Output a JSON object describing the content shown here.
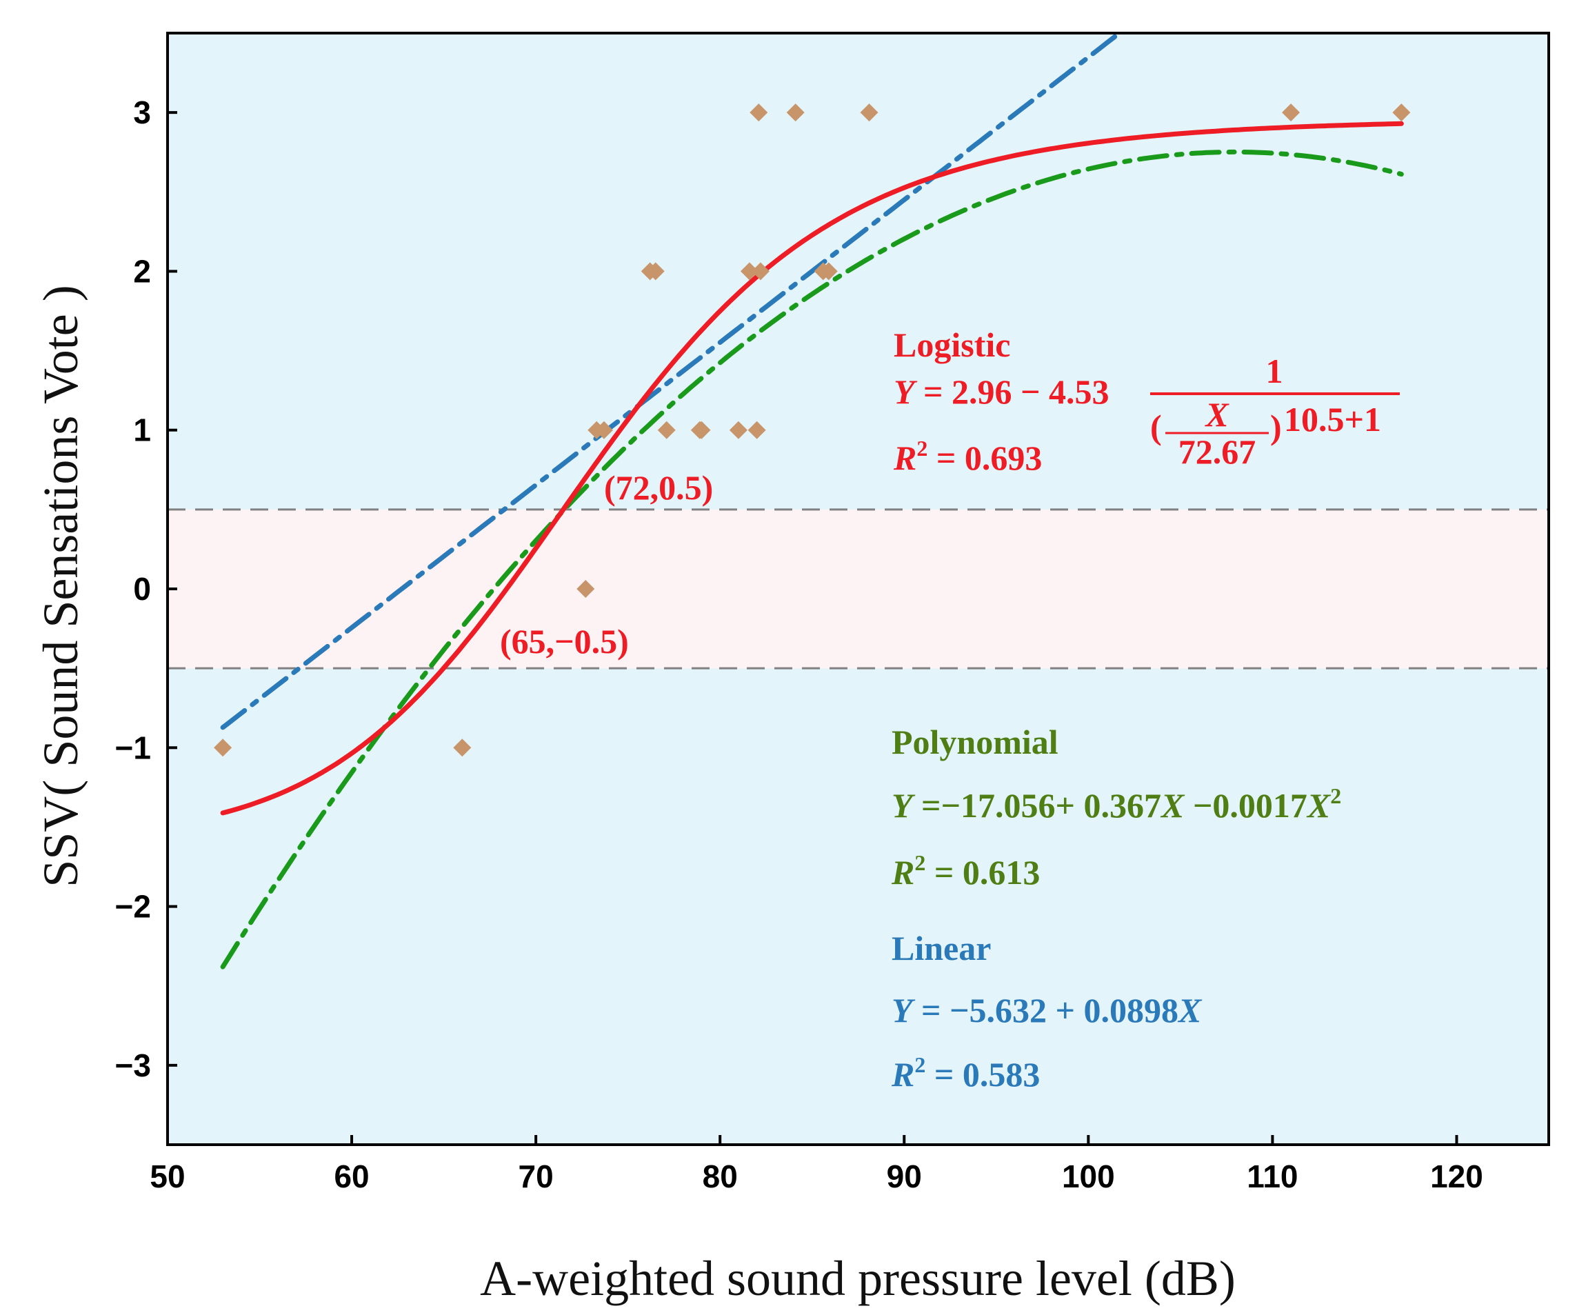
{
  "chart_data": {
    "type": "scatter",
    "xlabel": "A-weighted sound pressure level  (dB)",
    "ylabel": "SSV( Sound Sensations Vote )",
    "xlim": [
      50,
      125
    ],
    "ylim": [
      -3.5,
      3.5
    ],
    "xticks": [
      50,
      60,
      70,
      80,
      90,
      100,
      110,
      120
    ],
    "yticks": [
      -3,
      -2,
      -1,
      0,
      1,
      2,
      3
    ],
    "ytick_labels": [
      "−3",
      "−2",
      "−1",
      "0",
      "1",
      "2",
      "3"
    ],
    "grid": false,
    "colors": {
      "background": "#e4f4fb",
      "band": "#fdf2f4",
      "logistic": "#ee1c25",
      "polynomial": "#1a9a1a",
      "linear": "#2a79b8",
      "points": "#c8956a",
      "polynomial_text": "#4f7e14",
      "linear_text": "#2a79b8",
      "threshold": "#808080"
    },
    "band": {
      "y_min": -0.5,
      "y_max": 0.5
    },
    "threshold_lines": [
      0.5,
      -0.5
    ],
    "points": [
      {
        "x": 53,
        "y": -1
      },
      {
        "x": 66,
        "y": -1
      },
      {
        "x": 72.7,
        "y": 0
      },
      {
        "x": 73.3,
        "y": 1
      },
      {
        "x": 73.7,
        "y": 1
      },
      {
        "x": 76.2,
        "y": 2
      },
      {
        "x": 76.5,
        "y": 2
      },
      {
        "x": 77.1,
        "y": 1
      },
      {
        "x": 78.9,
        "y": 1
      },
      {
        "x": 79.0,
        "y": 1
      },
      {
        "x": 81.0,
        "y": 1
      },
      {
        "x": 81.6,
        "y": 2
      },
      {
        "x": 82.0,
        "y": 1
      },
      {
        "x": 82.2,
        "y": 2
      },
      {
        "x": 82.1,
        "y": 3
      },
      {
        "x": 84.1,
        "y": 3
      },
      {
        "x": 85.6,
        "y": 2
      },
      {
        "x": 85.9,
        "y": 2
      },
      {
        "x": 88.1,
        "y": 3
      },
      {
        "x": 111,
        "y": 3
      },
      {
        "x": 117,
        "y": 3
      }
    ],
    "series": [
      {
        "name": "Logistic",
        "style": "solid",
        "x_range": [
          53,
          117
        ],
        "equation": {
          "A1": -1.57,
          "A2": 2.96,
          "x0": 72.67,
          "p": 10.5
        }
      },
      {
        "name": "Polynomial",
        "style": "dash-dot",
        "x_range": [
          53,
          117
        ],
        "equation": {
          "c0": -17.056,
          "c1": 0.367,
          "c2": -0.0017
        }
      },
      {
        "name": "Linear",
        "style": "dash-dot",
        "x_range": [
          53,
          117
        ],
        "equation": {
          "intercept": -5.632,
          "slope": 0.0898
        }
      }
    ],
    "annotations": {
      "logistic": {
        "title": "Logistic",
        "eq_prefix": "Y",
        "eq_body": " = 2.96 − 4.53",
        "frac_num": "1",
        "frac_open": "(",
        "frac_x": "X",
        "frac_den": "72.67",
        "frac_close": ")",
        "frac_exp": "10.5+1",
        "r2_prefix": "R",
        "r2_sup": "2",
        "r2_value": " = 0.693"
      },
      "point_high": {
        "label": "(72,0.5)",
        "x": 72,
        "y": 0.5
      },
      "point_low": {
        "label": "(65,−0.5)",
        "x": 65,
        "y": -0.5
      },
      "polynomial": {
        "title": "Polynomial",
        "eq_y": "Y",
        "eq_part1": " =−17.056+ 0.367",
        "eq_x1": "X",
        "eq_part2": " −0.0017",
        "eq_x2": "X",
        "eq_sup": "2",
        "r2_prefix": "R",
        "r2_sup": "2",
        "r2_value": " = 0.613"
      },
      "linear": {
        "title": "Linear",
        "eq_y": "Y",
        "eq_part1": " = −5.632 + 0.0898",
        "eq_x": "X",
        "r2_prefix": "R",
        "r2_sup": "2",
        "r2_value": " = 0.583"
      }
    }
  }
}
